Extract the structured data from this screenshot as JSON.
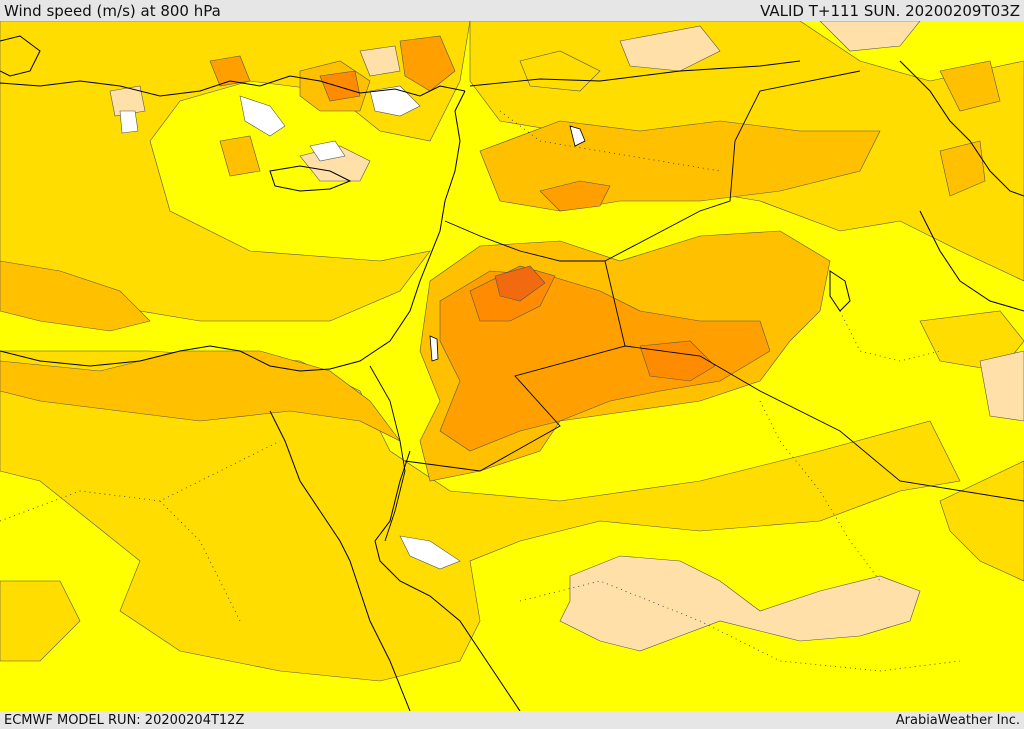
{
  "header": {
    "title": "Wind speed (m/s) at 800 hPa",
    "valid": "VALID T+111 SUN. 20200209T03Z"
  },
  "footer": {
    "model_run": "ECMWF MODEL RUN: 20200204T12Z",
    "credit": "ArabiaWeather Inc."
  },
  "colors": {
    "band_0": "#ffffff",
    "band_1": "#ffe0a8",
    "band_2": "#ffff00",
    "band_3": "#ffdd00",
    "band_4": "#ffc000",
    "band_5": "#ffa000",
    "band_6": "#ff8c00",
    "band_7": "#f26a10"
  }
}
